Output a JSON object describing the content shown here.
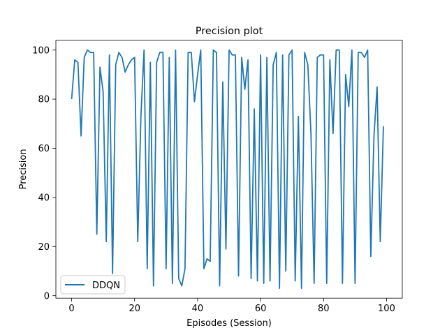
{
  "chart_data": {
    "type": "line",
    "title": "Precision plot",
    "xlabel": "Episodes (Session)",
    "ylabel": "Precision",
    "xlim": [
      -5,
      105
    ],
    "ylim": [
      -1,
      104
    ],
    "xticks": [
      0,
      20,
      40,
      60,
      80,
      100
    ],
    "yticks": [
      0,
      20,
      40,
      60,
      80,
      100
    ],
    "grid": false,
    "legend_position": "lower-left",
    "series": [
      {
        "name": "DDQN",
        "color": "#1f77b4",
        "x": [
          0,
          1,
          2,
          3,
          4,
          5,
          6,
          7,
          8,
          9,
          10,
          11,
          12,
          13,
          14,
          15,
          16,
          17,
          18,
          19,
          20,
          21,
          22,
          23,
          24,
          25,
          26,
          27,
          28,
          29,
          30,
          31,
          32,
          33,
          34,
          35,
          36,
          37,
          38,
          39,
          40,
          41,
          42,
          43,
          44,
          45,
          46,
          47,
          48,
          49,
          50,
          51,
          52,
          53,
          54,
          55,
          56,
          57,
          58,
          59,
          60,
          61,
          62,
          63,
          64,
          65,
          66,
          67,
          68,
          69,
          70,
          71,
          72,
          73,
          74,
          75,
          76,
          77,
          78,
          79,
          80,
          81,
          82,
          83,
          84,
          85,
          86,
          87,
          88,
          89,
          90,
          91,
          92,
          93,
          94,
          95,
          96,
          97,
          98,
          99
        ],
        "values": [
          80,
          96,
          95,
          65,
          97,
          100,
          99,
          99,
          25,
          93,
          83,
          22,
          98,
          9,
          94,
          99,
          97,
          91,
          94,
          96,
          97,
          22,
          73,
          100,
          11,
          95,
          4,
          95,
          99,
          99,
          11,
          97,
          5,
          100,
          7,
          4,
          11,
          99,
          99,
          79,
          90,
          100,
          11,
          15,
          14,
          100,
          99,
          4,
          87,
          19,
          100,
          98,
          98,
          8,
          97,
          84,
          96,
          7,
          76,
          6,
          98,
          5,
          97,
          6,
          94,
          99,
          3,
          98,
          10,
          98,
          100,
          6,
          73,
          3,
          99,
          94,
          66,
          5,
          97,
          98,
          98,
          5,
          96,
          66,
          100,
          100,
          5,
          90,
          77,
          100,
          5,
          99,
          99,
          97,
          100,
          16,
          65,
          85,
          22,
          69
        ]
      }
    ]
  }
}
